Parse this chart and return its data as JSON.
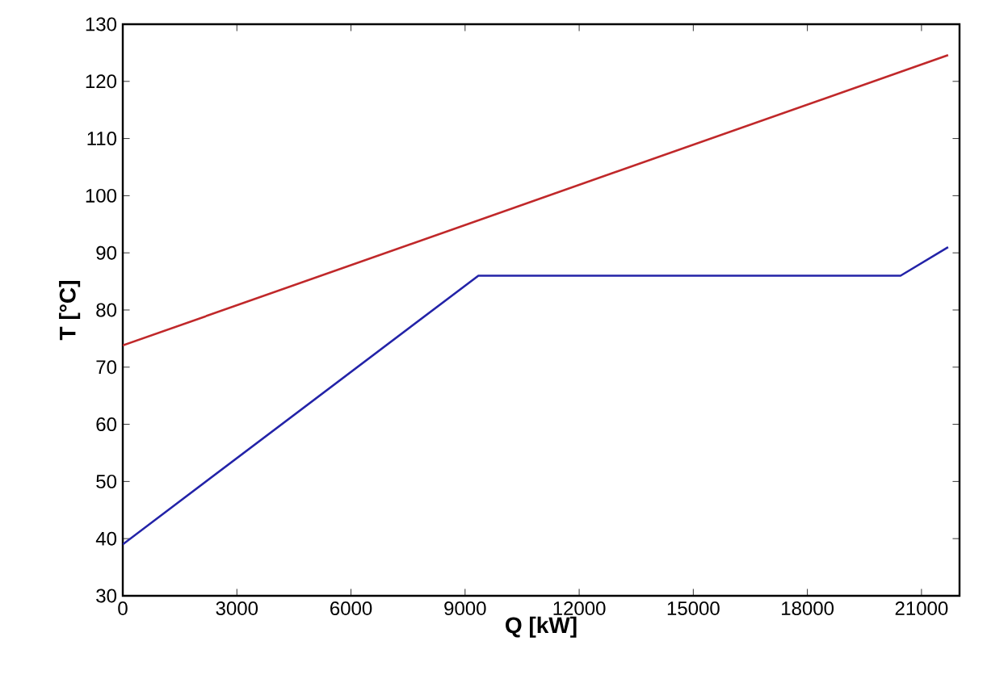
{
  "chart_data": {
    "type": "line",
    "xlabel": "Q [kW]",
    "ylabel": "T  [°C]",
    "xlim": [
      0,
      22000
    ],
    "ylim": [
      30,
      130
    ],
    "xticks": [
      0,
      3000,
      6000,
      9000,
      12000,
      15000,
      18000,
      21000
    ],
    "yticks": [
      30,
      40,
      50,
      60,
      70,
      80,
      90,
      100,
      110,
      120,
      130
    ],
    "grid": false,
    "marker": "none",
    "line_style": "solid",
    "series": [
      {
        "color": "#c0282a",
        "x": [
          0,
          21700
        ],
        "values": [
          73.8,
          124.6
        ]
      },
      {
        "color": "#2323a8",
        "x": [
          0,
          9350,
          20450,
          21700
        ],
        "values": [
          39,
          86,
          86,
          91
        ]
      }
    ]
  }
}
